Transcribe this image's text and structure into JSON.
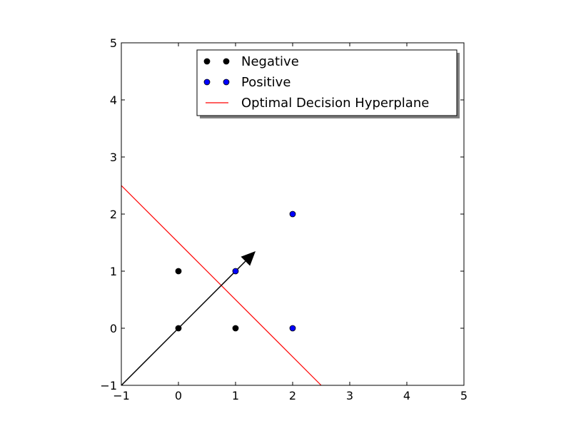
{
  "chart_data": {
    "type": "scatter",
    "title": "",
    "xlabel": "",
    "ylabel": "",
    "xlim": [
      -1,
      5
    ],
    "ylim": [
      -1,
      5
    ],
    "grid": false,
    "x_ticks": [
      -1,
      0,
      1,
      2,
      3,
      4,
      5
    ],
    "y_ticks": [
      -1,
      0,
      1,
      2,
      3,
      4,
      5
    ],
    "x_tick_labels": [
      "−1",
      "0",
      "1",
      "2",
      "3",
      "4",
      "5"
    ],
    "y_tick_labels": [
      "−1",
      "0",
      "1",
      "2",
      "3",
      "4",
      "5"
    ],
    "legend_position": "top-right",
    "series": [
      {
        "name": "Negative",
        "kind": "scatter",
        "color": "#000000",
        "points": [
          [
            0,
            0
          ],
          [
            0,
            1
          ],
          [
            1,
            0
          ]
        ]
      },
      {
        "name": "Positive",
        "kind": "scatter",
        "color": "#0000ff",
        "points": [
          [
            1,
            1
          ],
          [
            2,
            0
          ],
          [
            2,
            2
          ]
        ]
      },
      {
        "name": "Optimal Decision Hyperplane",
        "kind": "line",
        "color": "#ff0000",
        "points": [
          [
            -1,
            2.5
          ],
          [
            2.5,
            -1
          ]
        ]
      }
    ],
    "annotations": [
      {
        "kind": "arrow",
        "color": "#000000",
        "from": [
          -1,
          -1
        ],
        "to": [
          1.35,
          1.35
        ]
      }
    ]
  }
}
